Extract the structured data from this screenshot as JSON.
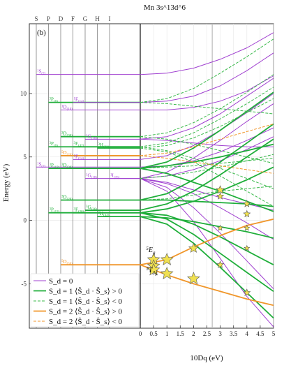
{
  "chart_data": {
    "type": "line",
    "title": "Mn 3s^13d^6",
    "panel_label": "(b)",
    "xlabel": "10Dq (eV)",
    "ylabel": "Energy (eV)",
    "xlim": [
      0,
      5
    ],
    "ylim": [
      -8.5,
      15.5
    ],
    "x_ticks": [
      "0",
      "0.5",
      "1",
      "1.5",
      "2",
      "2.5",
      "3",
      "3.5",
      "4",
      "4.5",
      "5"
    ],
    "y_ticks": [
      "-5",
      "0",
      "5",
      "10"
    ],
    "y_tick_values": [
      -5,
      0,
      5,
      10
    ],
    "x_tick_values": [
      0,
      0.5,
      1,
      1.5,
      2,
      2.5,
      3,
      3.5,
      4,
      4.5,
      5
    ],
    "vline_x": 2.7,
    "top_labels": [
      "S",
      "P",
      "D",
      "F",
      "G",
      "H",
      "I"
    ],
    "annotations": [
      {
        "text": "5",
        "sub": "E",
        "subsub": "g",
        "x": 0.22,
        "y": -2.5
      },
      {
        "text": "5",
        "sub": "T",
        "subsub": "2g",
        "x": 0.22,
        "y": -4.1
      }
    ],
    "colors": {
      "S0": "#a040d0",
      "S1pos": "#1fae3a",
      "S1neg": "#39b94a",
      "S2pos": "#f0962a",
      "S2neg": "#f0962a",
      "star": "#f0e050"
    },
    "legend": {
      "position": "bottom-left",
      "entries": [
        {
          "label": "S_d = 0",
          "style": "S0"
        },
        {
          "label": "S_d = 1  ⟨Ŝ_d · Ŝ_s⟩ > 0",
          "style": "S1pos"
        },
        {
          "label": "S_d = 1  ⟨Ŝ_d · Ŝ_s⟩ < 0",
          "style": "S1neg"
        },
        {
          "label": "S_d = 2  ⟨Ŝ_d · Ŝ_s⟩ > 0",
          "style": "S2pos"
        },
        {
          "label": "S_d = 2  ⟨Ŝ_d · Ŝ_s⟩ < 0",
          "style": "S2neg"
        }
      ]
    },
    "atomic_levels": [
      {
        "label": "1",
        "sub": "S",
        "deg": "(2)",
        "L": 0,
        "E": 11.5,
        "style": "S0"
      },
      {
        "label": "3",
        "sub": "P",
        "deg": "(6)",
        "L": 1,
        "E": 9.3,
        "style": "S1pos"
      },
      {
        "label": "1",
        "sub": "F",
        "deg": "(14)",
        "L": 3,
        "E": 9.3,
        "style": "S0"
      },
      {
        "label": "1",
        "sub": "D",
        "deg": "(10)",
        "L": 2,
        "E": 8.7,
        "style": "S0"
      },
      {
        "label": "3",
        "sub": "D",
        "deg": "(30)",
        "L": 2,
        "E": 6.6,
        "style": "S1pos"
      },
      {
        "label": "1",
        "sub": "G",
        "deg": "(18)",
        "L": 4,
        "E": 6.4,
        "style": "S0"
      },
      {
        "label": "3",
        "sub": "P",
        "deg": "(6)",
        "L": 1,
        "E": 5.8,
        "style": "S1pos"
      },
      {
        "label": "3",
        "sub": "F",
        "deg": "(42)",
        "L": 3,
        "E": 5.8,
        "style": "S1pos"
      },
      {
        "label": "3",
        "sub": "H",
        "deg": "(22)",
        "L": 5,
        "E": 5.7,
        "style": "S1pos"
      },
      {
        "label": "5",
        "sub": "D",
        "deg": "(20)",
        "L": 2,
        "E": 5.1,
        "style": "S2pos"
      },
      {
        "label": "1",
        "sub": "F",
        "deg": "(14)",
        "L": 3,
        "E": 4.8,
        "style": "S0"
      },
      {
        "label": "1",
        "sub": "S",
        "deg": "(2)",
        "L": 0,
        "E": 4.2,
        "style": "S0"
      },
      {
        "label": "3",
        "sub": "P",
        "deg": "(12)",
        "L": 1,
        "E": 4.1,
        "style": "S1pos"
      },
      {
        "label": "3",
        "sub": "D",
        "deg": "(30)",
        "L": 2,
        "E": 4.1,
        "style": "S1pos"
      },
      {
        "label": "1",
        "sub": "G",
        "deg": "(18)",
        "L": 4,
        "E": 3.3,
        "style": "S0"
      },
      {
        "label": "1",
        "sub": "I",
        "deg": "(26)",
        "L": 6,
        "E": 3.3,
        "style": "S0"
      },
      {
        "label": "3",
        "sub": "D",
        "deg": "(20)",
        "L": 2,
        "E": 1.6,
        "style": "S1pos"
      },
      {
        "label": "3",
        "sub": "P",
        "deg": "(12)",
        "L": 1,
        "E": 0.6,
        "style": "S1pos"
      },
      {
        "label": "3",
        "sub": "F",
        "deg": "(28)",
        "L": 3,
        "E": 0.6,
        "style": "S1pos"
      },
      {
        "label": "3",
        "sub": "G",
        "deg": "(36)",
        "L": 4,
        "E": 0.8,
        "style": "S1pos"
      },
      {
        "label": "3",
        "sub": "H",
        "deg": "(44)",
        "L": 5,
        "E": 0.3,
        "style": "S1pos"
      },
      {
        "label": "5",
        "sub": "D",
        "deg": "(50)",
        "L": 2,
        "E": -3.5,
        "style": "S2pos"
      }
    ],
    "series": [
      {
        "style": "S0",
        "x": [
          0,
          1,
          2,
          3,
          4,
          5
        ],
        "y": [
          11.5,
          11.6,
          12.0,
          12.7,
          13.6,
          14.8
        ]
      },
      {
        "style": "S0",
        "x": [
          0,
          1,
          2,
          3,
          4,
          5
        ],
        "y": [
          9.3,
          9.4,
          9.8,
          10.6,
          11.8,
          13.2
        ]
      },
      {
        "style": "S0",
        "x": [
          0,
          1,
          2,
          3,
          4,
          5
        ],
        "y": [
          8.7,
          8.7,
          8.9,
          9.4,
          10.2,
          11.4
        ]
      },
      {
        "style": "S0",
        "x": [
          0,
          1,
          2,
          3,
          4,
          5
        ],
        "y": [
          6.4,
          6.6,
          7.3,
          8.4,
          9.8,
          11.2
        ]
      },
      {
        "style": "S0",
        "x": [
          0,
          1,
          2,
          3,
          4,
          5
        ],
        "y": [
          6.4,
          6.3,
          6.1,
          5.9,
          5.8,
          5.8
        ]
      },
      {
        "style": "S0",
        "x": [
          0,
          1,
          2,
          3,
          4,
          5
        ],
        "y": [
          4.8,
          5.1,
          5.9,
          7.1,
          8.5,
          10.0
        ]
      },
      {
        "style": "S0",
        "x": [
          0,
          1,
          2,
          3,
          4,
          5
        ],
        "y": [
          4.2,
          4.3,
          4.7,
          5.4,
          6.3,
          7.3
        ]
      },
      {
        "style": "S0",
        "x": [
          0,
          1,
          2,
          3,
          4,
          5
        ],
        "y": [
          3.3,
          3.8,
          4.9,
          6.3,
          7.8,
          9.2
        ]
      },
      {
        "style": "S0",
        "x": [
          0,
          1,
          2,
          3,
          4,
          5
        ],
        "y": [
          3.3,
          3.5,
          4.0,
          4.7,
          5.6,
          6.6
        ]
      },
      {
        "style": "S0",
        "x": [
          0,
          1,
          2,
          3,
          4,
          5
        ],
        "y": [
          3.3,
          2.9,
          2.1,
          1.0,
          -0.2,
          -1.5
        ]
      },
      {
        "style": "S0",
        "x": [
          0,
          1,
          2,
          3,
          4,
          5
        ],
        "y": [
          3.3,
          2.6,
          1.0,
          -1.0,
          -3.2,
          -5.4
        ]
      },
      {
        "style": "S0",
        "x": [
          0,
          1,
          2,
          3,
          4,
          5
        ],
        "y": [
          3.3,
          2.3,
          -0.1,
          -3.0,
          -6.0,
          -8.4
        ]
      },
      {
        "style": "S0",
        "x": [
          0,
          1,
          2,
          3,
          4,
          5
        ],
        "y": [
          3.3,
          3.0,
          2.4,
          1.8,
          1.3,
          0.8
        ]
      },
      {
        "style": "S1pos",
        "x": [
          0,
          1,
          2,
          3,
          4,
          5
        ],
        "y": [
          4.1,
          4.6,
          5.7,
          7.1,
          8.6,
          10.1
        ]
      },
      {
        "style": "S1pos",
        "x": [
          0,
          1,
          2,
          3,
          4,
          5
        ],
        "y": [
          4.1,
          4.3,
          4.6,
          5.0,
          5.5,
          6.0
        ]
      },
      {
        "style": "S1pos",
        "x": [
          0,
          1,
          2,
          3,
          4,
          5
        ],
        "y": [
          4.1,
          3.7,
          3.0,
          2.3,
          1.5,
          0.7
        ]
      },
      {
        "style": "S1pos",
        "x": [
          0,
          1,
          2,
          3,
          4,
          5
        ],
        "y": [
          1.6,
          2.1,
          3.2,
          4.6,
          6.1,
          7.6
        ]
      },
      {
        "style": "S1pos",
        "x": [
          0,
          1,
          2,
          3,
          4,
          5
        ],
        "y": [
          1.6,
          1.6,
          1.5,
          1.4,
          1.3,
          1.1
        ]
      },
      {
        "style": "S1pos",
        "x": [
          0,
          1,
          2,
          3,
          4,
          5
        ],
        "y": [
          0.8,
          1.3,
          2.3,
          3.6,
          5.0,
          6.4
        ]
      },
      {
        "style": "S1pos",
        "x": [
          0,
          1,
          2,
          3,
          4,
          5
        ],
        "y": [
          0.6,
          0.9,
          1.5,
          2.3,
          3.2,
          4.2
        ]
      },
      {
        "style": "S1pos",
        "x": [
          0,
          1,
          2,
          3,
          4,
          5
        ],
        "y": [
          0.6,
          0.4,
          -0.3,
          -1.3,
          -2.4,
          -3.5
        ]
      },
      {
        "style": "S1pos",
        "x": [
          0,
          1,
          2,
          3,
          4,
          5
        ],
        "y": [
          0.6,
          0.1,
          -1.1,
          -2.6,
          -4.1,
          -5.6
        ]
      },
      {
        "style": "S1pos",
        "x": [
          0,
          1,
          2,
          3,
          4,
          5
        ],
        "y": [
          0.3,
          -0.3,
          -1.8,
          -3.7,
          -5.7,
          -7.7
        ]
      },
      {
        "style": "S1pos",
        "x": [
          0,
          1,
          2,
          3,
          4,
          5
        ],
        "y": [
          0.3,
          0.2,
          -0.1,
          -0.5,
          -0.9,
          -1.4
        ]
      },
      {
        "style": "S1neg",
        "x": [
          0,
          1,
          2,
          3,
          4,
          5
        ],
        "y": [
          9.3,
          9.6,
          10.4,
          11.6,
          12.9,
          14.3
        ]
      },
      {
        "style": "S1neg",
        "x": [
          0,
          1,
          2,
          3,
          4,
          5
        ],
        "y": [
          9.3,
          9.2,
          9.0,
          8.8,
          8.6,
          8.4
        ]
      },
      {
        "style": "S1neg",
        "x": [
          0,
          1,
          2,
          3,
          4,
          5
        ],
        "y": [
          6.6,
          6.9,
          7.7,
          8.8,
          10.1,
          11.5
        ]
      },
      {
        "style": "S1neg",
        "x": [
          0,
          1,
          2,
          3,
          4,
          5
        ],
        "y": [
          6.6,
          6.4,
          6.0,
          5.5,
          5.0,
          4.5
        ]
      },
      {
        "style": "S1neg",
        "x": [
          0,
          1,
          2,
          3,
          4,
          5
        ],
        "y": [
          5.8,
          6.1,
          6.9,
          8.0,
          9.2,
          10.5
        ]
      },
      {
        "style": "S1neg",
        "x": [
          0,
          1,
          2,
          3,
          4,
          5
        ],
        "y": [
          5.8,
          5.5,
          4.9,
          4.1,
          3.3,
          2.5
        ]
      },
      {
        "style": "S1neg",
        "x": [
          0,
          1,
          2,
          3,
          4,
          5
        ],
        "y": [
          5.7,
          5.4,
          4.6,
          3.5,
          2.3,
          1.1
        ]
      },
      {
        "style": "S1neg",
        "x": [
          0,
          1,
          2,
          3,
          4,
          5
        ],
        "y": [
          5.7,
          5.9,
          6.5,
          7.4,
          8.5,
          9.6
        ]
      },
      {
        "style": "S1neg",
        "x": [
          0,
          1,
          2,
          3,
          4,
          5
        ],
        "y": [
          4.1,
          4.2,
          4.3,
          4.5,
          4.7,
          4.9
        ]
      },
      {
        "style": "S1neg",
        "x": [
          0,
          1,
          2,
          3,
          4,
          5
        ],
        "y": [
          3.3,
          3.5,
          3.8,
          4.2,
          4.7,
          5.2
        ]
      },
      {
        "style": "S1neg",
        "x": [
          0,
          1,
          2,
          3,
          4,
          5
        ],
        "y": [
          1.6,
          1.7,
          2.0,
          2.3,
          2.5,
          2.7
        ]
      },
      {
        "style": "S2pos",
        "x": [
          0,
          1,
          2,
          3,
          4,
          5
        ],
        "y": [
          -3.5,
          -3.1,
          -2.1,
          -1.2,
          -0.4,
          0.1
        ]
      },
      {
        "style": "S2pos",
        "x": [
          0,
          1,
          2,
          3,
          4,
          5
        ],
        "y": [
          -3.5,
          -4.3,
          -5.0,
          -5.6,
          -6.2,
          -6.7
        ]
      },
      {
        "style": "S2neg",
        "x": [
          0,
          1,
          2,
          3,
          4,
          5
        ],
        "y": [
          5.1,
          5.3,
          5.8,
          6.4,
          7.0,
          7.6
        ]
      },
      {
        "style": "S2neg",
        "x": [
          0,
          1,
          2,
          3,
          4,
          5
        ],
        "y": [
          5.1,
          4.9,
          4.6,
          4.3,
          4.0,
          3.7
        ]
      }
    ],
    "star_markers": [
      {
        "x": 0.5,
        "y": -3.1,
        "size": 9
      },
      {
        "x": 0.5,
        "y": -3.6,
        "size": 9
      },
      {
        "x": 0.5,
        "y": -3.9,
        "size": 9
      },
      {
        "x": 1.0,
        "y": -3.1,
        "size": 9
      },
      {
        "x": 1.0,
        "y": -4.2,
        "size": 9
      },
      {
        "x": 2.0,
        "y": -2.2,
        "size": 7
      },
      {
        "x": 2.0,
        "y": -4.6,
        "size": 9
      },
      {
        "x": 3.0,
        "y": 2.4,
        "size": 6
      },
      {
        "x": 3.0,
        "y": 1.9,
        "size": 5
      },
      {
        "x": 3.0,
        "y": -0.6,
        "size": 4
      },
      {
        "x": 3.0,
        "y": -3.5,
        "size": 5
      },
      {
        "x": 4.0,
        "y": 1.3,
        "size": 5
      },
      {
        "x": 4.0,
        "y": 0.5,
        "size": 5
      },
      {
        "x": 4.0,
        "y": -0.6,
        "size": 4
      },
      {
        "x": 4.0,
        "y": -2.2,
        "size": 4
      },
      {
        "x": 4.0,
        "y": -5.7,
        "size": 5
      }
    ]
  }
}
